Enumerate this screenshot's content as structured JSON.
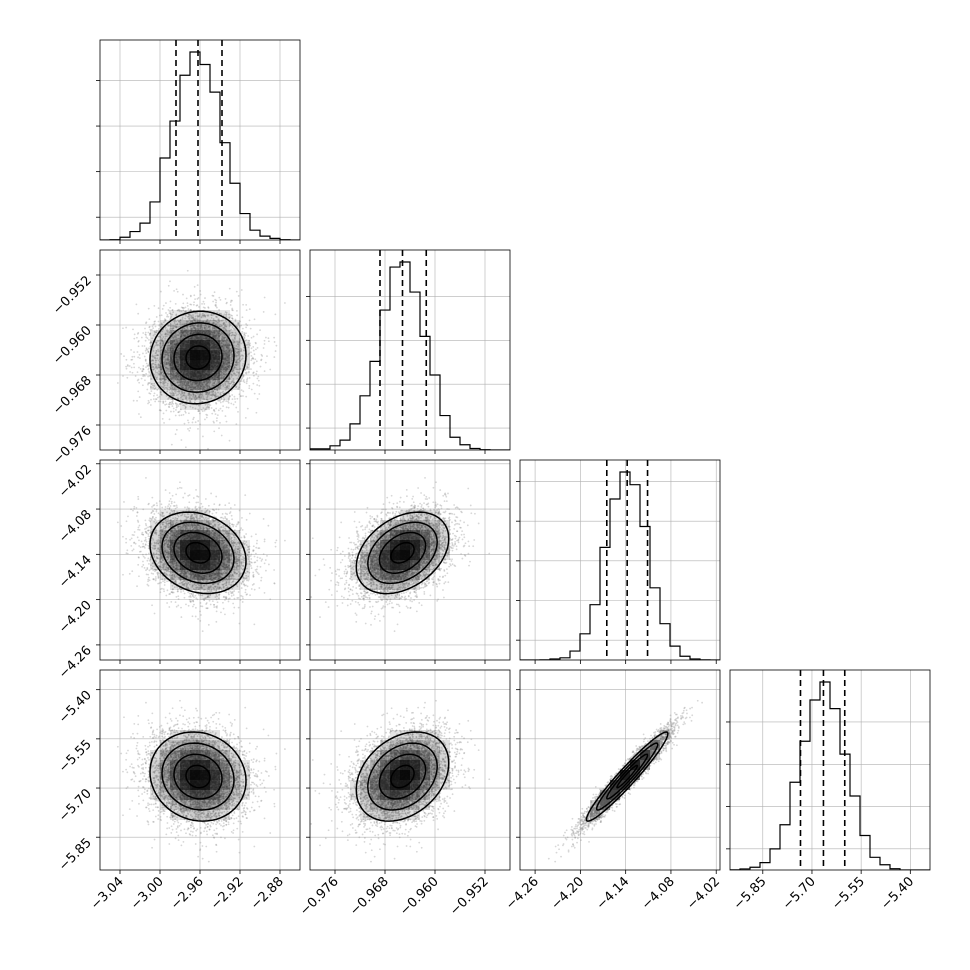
{
  "chart_data": {
    "type": "corner",
    "title": "",
    "parameters": [
      {
        "label": "",
        "lim": [
          -3.06,
          -2.86
        ],
        "ticks": [
          -3.04,
          -3.0,
          -2.96,
          -2.92,
          -2.88
        ],
        "tick_labels": [
          "−3.04",
          "−3.00",
          "−2.96",
          "−2.92",
          "−2.88"
        ],
        "quantiles": [
          -2.984,
          -2.962,
          -2.938
        ],
        "median": -2.962,
        "sigma": 0.024
      },
      {
        "label": "",
        "lim": [
          -0.98,
          -0.948
        ],
        "ticks": [
          -0.976,
          -0.968,
          -0.96,
          -0.952
        ],
        "tick_labels": [
          "−0.976",
          "−0.968",
          "−0.960",
          "−0.952"
        ],
        "quantiles": [
          -0.9688,
          -0.9652,
          -0.9614
        ],
        "median": -0.9652,
        "sigma": 0.0037
      },
      {
        "label": "",
        "lim": [
          -4.28,
          -4.015
        ],
        "ticks": [
          -4.26,
          -4.2,
          -4.14,
          -4.08,
          -4.02
        ],
        "tick_labels": [
          "−4.26",
          "−4.20",
          "−4.14",
          "−4.08",
          "−4.02"
        ],
        "quantiles": [
          -4.165,
          -4.138,
          -4.111
        ],
        "median": -4.138,
        "sigma": 0.027
      },
      {
        "label": "",
        "lim": [
          -5.95,
          -5.34
        ],
        "ticks": [
          -5.85,
          -5.7,
          -5.55,
          -5.4
        ],
        "tick_labels": [
          "−5.85",
          "−5.70",
          "−5.55",
          "−5.40"
        ],
        "quantiles": [
          -5.735,
          -5.665,
          -5.6
        ],
        "median": -5.665,
        "sigma": 0.068
      }
    ],
    "correlations": {
      "1-0": 0.05,
      "2-0": -0.2,
      "2-1": 0.35,
      "3-0": -0.1,
      "3-1": 0.3,
      "3-2": 0.96
    },
    "histogram": {
      "bins": 20,
      "style": "step"
    },
    "quantiles_shown": [
      0.16,
      0.5,
      0.84
    ],
    "contour_levels_sigma": [
      0.5,
      1.0,
      1.5,
      2.0
    ],
    "grid": true,
    "legend": "none",
    "colors": {
      "line": "#000000",
      "grid": "#b0b0b0",
      "scatter": "#8c8c8c",
      "density": "#000000"
    }
  }
}
